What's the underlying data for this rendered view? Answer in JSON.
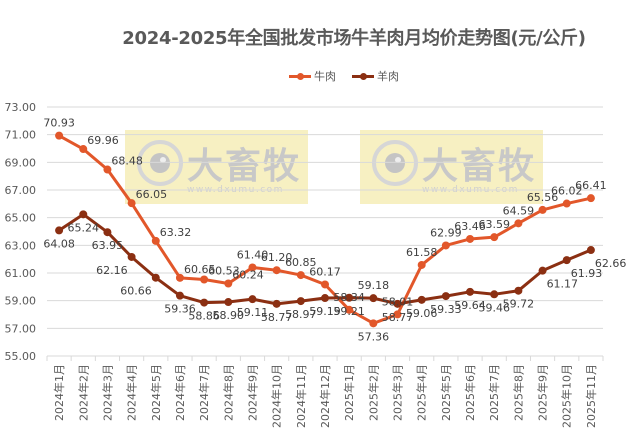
{
  "title": "2024-2025年全国批发市场牛羊肉月均价走势图(元/公斤)",
  "legend": [
    {
      "label": "牛肉",
      "color": "#E2572A"
    },
    {
      "label": "羊肉",
      "color": "#8B2F12"
    }
  ],
  "watermark": {
    "brand": "大畜牧",
    "url": "www.dxumu.com",
    "count": 2
  },
  "chart_data": {
    "type": "line",
    "title": "2024-2025年全国批发市场牛羊肉月均价走势图(元/公斤)",
    "xlabel": "",
    "ylabel": "",
    "ylim": [
      55.0,
      73.0
    ],
    "yticks": [
      "55.00",
      "57.00",
      "59.00",
      "61.00",
      "63.00",
      "65.00",
      "67.00",
      "69.00",
      "71.00",
      "73.00"
    ],
    "grid": true,
    "legend_position": "top",
    "categories": [
      "2024年1月",
      "2024年2月",
      "2024年3月",
      "2024年4月",
      "2024年5月",
      "2024年6月",
      "2024年7月",
      "2024年8月",
      "2024年9月",
      "2024年10月",
      "2024年11月",
      "2024年12月",
      "2025年1月",
      "2025年2月",
      "2025年3月",
      "2025年4月",
      "2025年5月",
      "2025年6月",
      "2025年7月",
      "2025年8月",
      "2025年9月",
      "2025年10月",
      "2025年11月"
    ],
    "series": [
      {
        "name": "牛肉",
        "color": "#E2572A",
        "values": [
          70.93,
          69.96,
          68.48,
          66.05,
          63.32,
          60.65,
          60.53,
          60.24,
          61.4,
          61.2,
          60.85,
          60.17,
          58.34,
          57.36,
          58.01,
          61.58,
          62.99,
          63.46,
          63.59,
          64.59,
          65.56,
          66.02,
          66.41
        ],
        "label_pos": [
          "above",
          "right",
          "right",
          "right",
          "right",
          "right",
          "right",
          "right",
          "above",
          "above",
          "above",
          "above",
          "above",
          "below",
          "above",
          "above",
          "above",
          "above",
          "above",
          "above",
          "above",
          "above",
          "above"
        ]
      },
      {
        "name": "羊肉",
        "color": "#8B2F12",
        "values": [
          64.08,
          65.24,
          63.95,
          62.16,
          60.66,
          59.36,
          58.86,
          58.9,
          59.11,
          58.77,
          58.97,
          59.19,
          59.21,
          59.18,
          58.77,
          59.06,
          59.33,
          59.64,
          59.46,
          59.72,
          61.17,
          61.93,
          62.66
        ],
        "label_pos": [
          "below",
          "below",
          "below",
          "belowleft",
          "belowleft",
          "below",
          "below",
          "below",
          "below",
          "below",
          "below",
          "below",
          "below",
          "above",
          "below",
          "below",
          "below",
          "below",
          "below",
          "below",
          "belowright",
          "belowright",
          "belowright"
        ]
      }
    ]
  }
}
